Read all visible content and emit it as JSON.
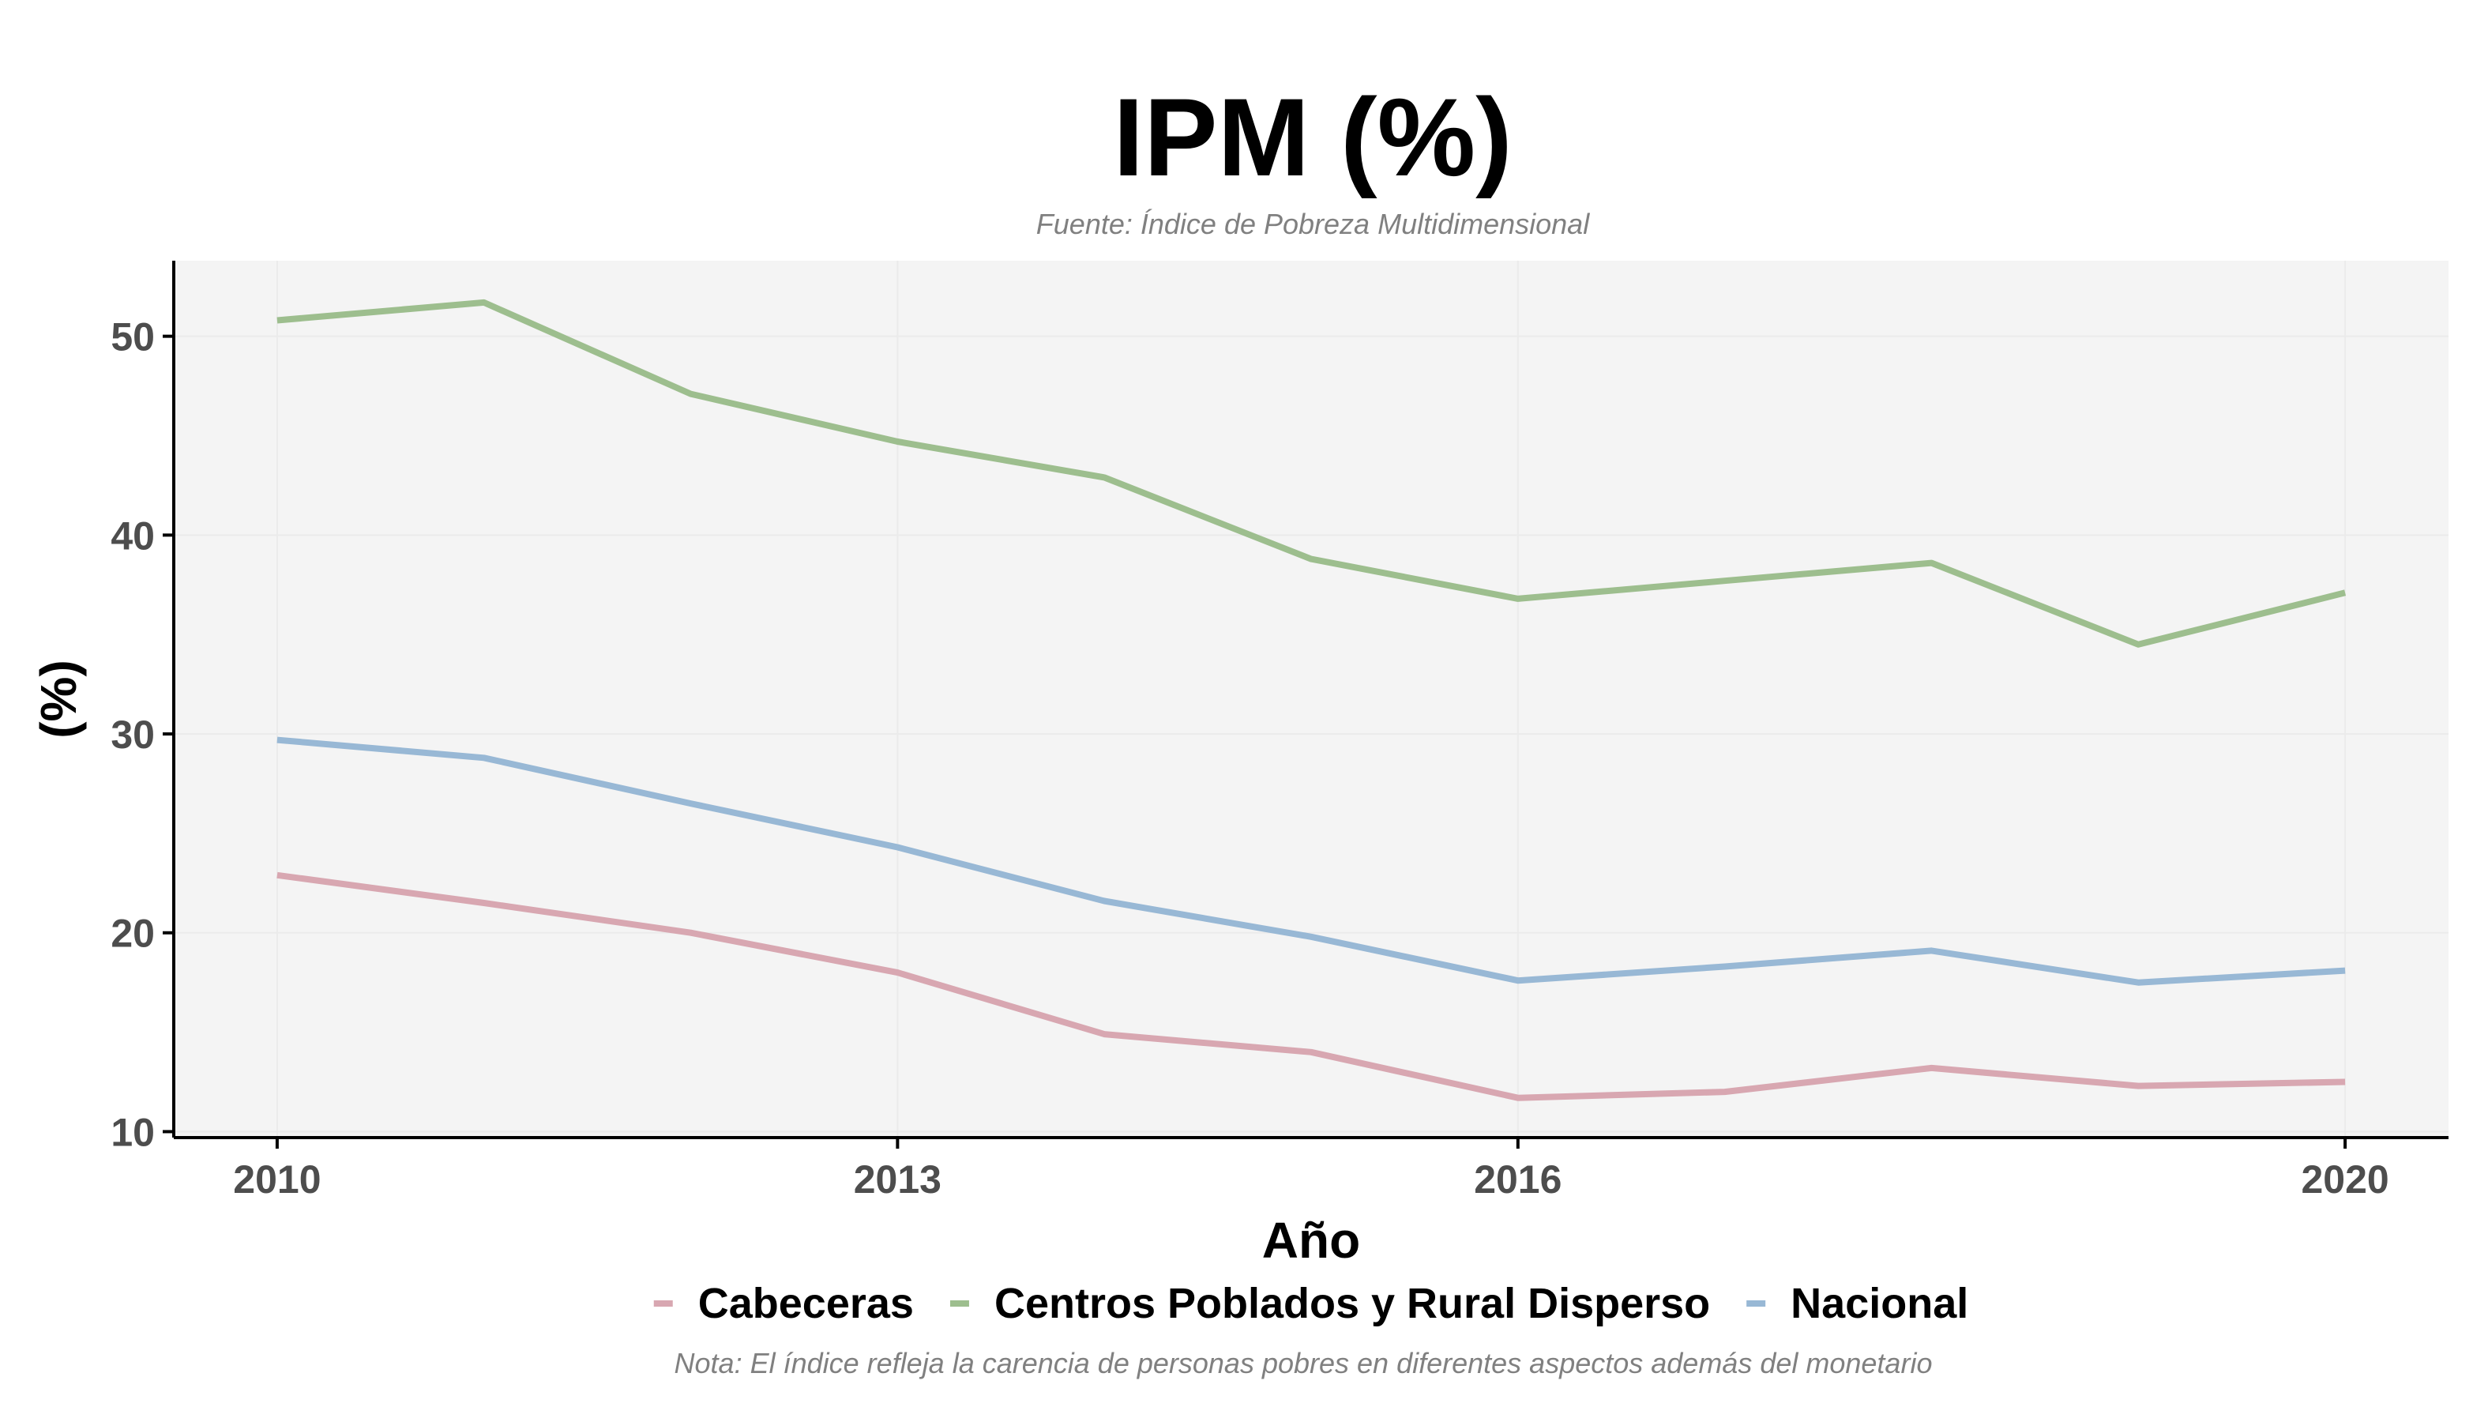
{
  "chart_data": {
    "type": "line",
    "title": "IPM (%)",
    "subtitle": "Fuente: Índice de Pobreza Multidimensional",
    "xlabel": "Año",
    "ylabel": "(%)",
    "caption": "Nota: El índice refleja la carencia de personas pobres en diferentes aspectos además del monetario",
    "x": [
      2010,
      2011,
      2012,
      2013,
      2014,
      2015,
      2016,
      2017,
      2018,
      2019,
      2020
    ],
    "xticks": [
      2010,
      2013,
      2016,
      2020
    ],
    "yticks": [
      10,
      20,
      30,
      40,
      50
    ],
    "xlim": [
      2009.5,
      2020.5
    ],
    "ylim": [
      9.7,
      53.8
    ],
    "grid": true,
    "legend_position": "bottom",
    "series": [
      {
        "name": "Cabeceras",
        "color": "#d8a7b1",
        "values": [
          22.9,
          21.5,
          20.0,
          18.0,
          14.9,
          14.0,
          11.7,
          12.0,
          13.2,
          12.3,
          12.5
        ]
      },
      {
        "name": "Centros Poblados y Rural Disperso",
        "color": "#9dbe8e",
        "values": [
          50.8,
          51.7,
          47.1,
          44.7,
          42.9,
          38.8,
          36.8,
          37.7,
          38.6,
          34.5,
          37.1
        ]
      },
      {
        "name": "Nacional",
        "color": "#98b8d5",
        "values": [
          29.7,
          28.8,
          26.5,
          24.3,
          21.6,
          19.8,
          17.6,
          18.3,
          19.1,
          17.5,
          18.1
        ]
      }
    ]
  }
}
